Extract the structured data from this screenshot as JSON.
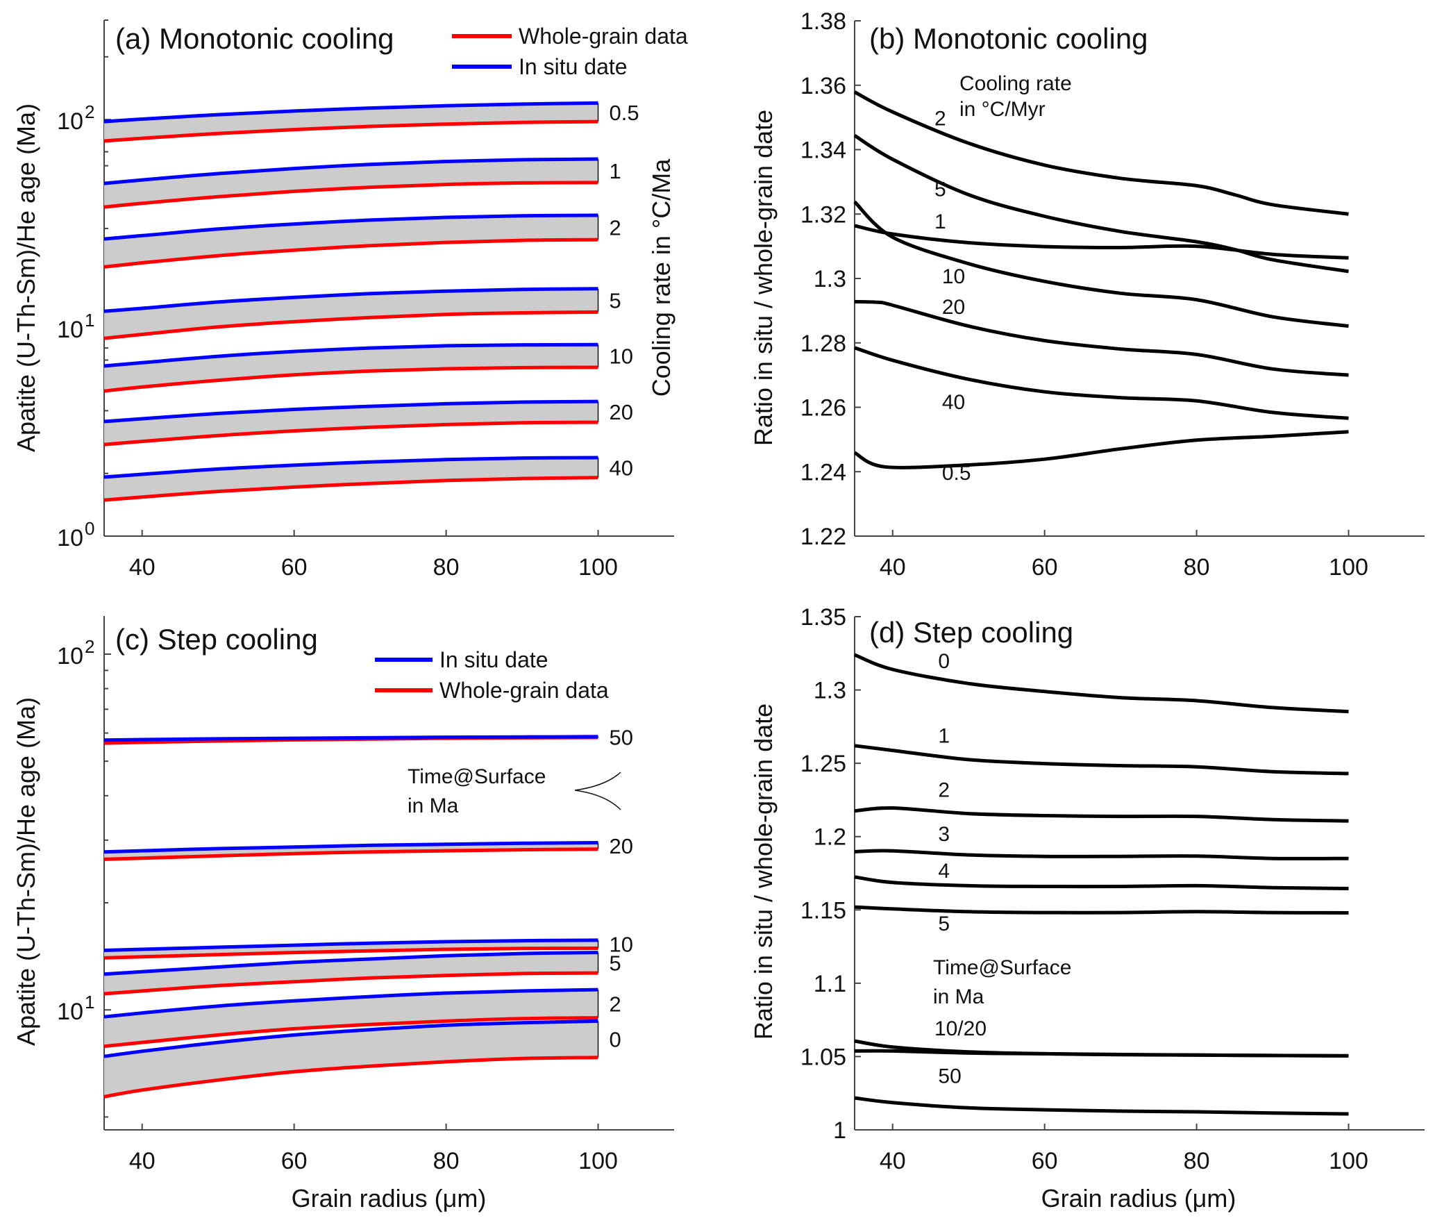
{
  "colors": {
    "in_situ": "#0000ff",
    "whole_grain": "#ff0000",
    "band_fill": "#cccccc",
    "ratio_line": "#000000"
  },
  "chart_data": [
    {
      "id": "a",
      "type": "area",
      "title": "(a) Monotonic cooling",
      "xlabel": "",
      "ylabel": "Apatite (U-Th-Sm)/He age (Ma)",
      "right_label": "Cooling rate in °C/Ma",
      "yscale": "log",
      "xlim": [
        35,
        110
      ],
      "ylim": [
        1,
        300
      ],
      "xticks": [
        40,
        60,
        80,
        100
      ],
      "xtick_labels": [
        "40",
        "60",
        "80",
        "100"
      ],
      "yticks": [
        1,
        10,
        100
      ],
      "ytick_labels": [
        {
          "base": "10",
          "exp": "0"
        },
        {
          "base": "10",
          "exp": "1"
        },
        {
          "base": "10",
          "exp": "2"
        }
      ],
      "legend": {
        "placement": "top-right",
        "entries": [
          {
            "label": "Whole-grain data",
            "series": "whole_grain"
          },
          {
            "label": "In situ date",
            "series": "in_situ"
          }
        ]
      },
      "x": [
        35,
        40,
        50,
        60,
        70,
        80,
        90,
        100
      ],
      "bands": [
        {
          "label": "0.5",
          "in_situ": [
            97.7,
            100.5,
            105.5,
            109.8,
            113.5,
            116.4,
            118.6,
            120.0
          ],
          "whole_grain": [
            78.9,
            81.3,
            85.7,
            89.5,
            92.7,
            95.1,
            96.8,
            97.7
          ]
        },
        {
          "label": "1",
          "in_situ": [
            49.3,
            51.3,
            55.0,
            58.2,
            60.9,
            62.9,
            64.1,
            64.6
          ],
          "whole_grain": [
            38.0,
            39.6,
            42.6,
            45.2,
            47.3,
            48.8,
            49.6,
            49.8
          ]
        },
        {
          "label": "2",
          "in_situ": [
            26.7,
            27.7,
            29.8,
            31.5,
            32.9,
            33.9,
            34.5,
            34.7
          ],
          "whole_grain": [
            19.6,
            20.5,
            22.2,
            23.6,
            24.8,
            25.7,
            26.3,
            26.5
          ]
        },
        {
          "label": "5",
          "in_situ": [
            12.0,
            12.4,
            13.3,
            14.0,
            14.6,
            15.0,
            15.3,
            15.4
          ],
          "whole_grain": [
            8.9,
            9.3,
            10.1,
            10.7,
            11.2,
            11.6,
            11.8,
            11.9
          ]
        },
        {
          "label": "10",
          "in_situ": [
            6.56,
            6.8,
            7.3,
            7.7,
            8.0,
            8.2,
            8.28,
            8.3
          ],
          "whole_grain": [
            4.97,
            5.2,
            5.6,
            5.95,
            6.2,
            6.36,
            6.44,
            6.46
          ]
        },
        {
          "label": "20",
          "in_situ": [
            3.55,
            3.66,
            3.88,
            4.06,
            4.2,
            4.32,
            4.4,
            4.43
          ],
          "whole_grain": [
            2.75,
            2.85,
            3.04,
            3.2,
            3.33,
            3.43,
            3.5,
            3.52
          ]
        },
        {
          "label": "40",
          "in_situ": [
            1.92,
            1.98,
            2.1,
            2.19,
            2.27,
            2.33,
            2.37,
            2.38
          ],
          "whole_grain": [
            1.49,
            1.54,
            1.64,
            1.72,
            1.79,
            1.85,
            1.89,
            1.91
          ]
        }
      ]
    },
    {
      "id": "b",
      "type": "line",
      "title": "(b) Monotonic cooling",
      "xlabel": "",
      "ylabel": "Ratio in situ / whole-grain date",
      "annotation": [
        "Cooling rate",
        "in °C/Myr"
      ],
      "xlim": [
        35,
        110
      ],
      "ylim": [
        1.22,
        1.38
      ],
      "xticks": [
        40,
        60,
        80,
        100
      ],
      "xtick_labels": [
        "40",
        "60",
        "80",
        "100"
      ],
      "yticks": [
        1.22,
        1.24,
        1.26,
        1.28,
        1.3,
        1.32,
        1.34,
        1.36,
        1.38
      ],
      "ytick_labels": [
        "1.22",
        "1.24",
        "1.26",
        "1.28",
        "1.3",
        "1.32",
        "1.34",
        "1.36",
        "1.38"
      ],
      "series": [
        {
          "name": "2",
          "label_at": [
            45.5,
            1.3475
          ],
          "x": [
            35,
            40,
            50,
            60,
            70,
            80,
            85,
            90,
            100
          ],
          "y": [
            1.3579,
            1.3517,
            1.342,
            1.3352,
            1.3311,
            1.3288,
            1.326,
            1.3229,
            1.32
          ]
        },
        {
          "name": "5",
          "label_at": [
            45.5,
            1.3255
          ],
          "x": [
            35,
            40,
            50,
            60,
            70,
            80,
            85,
            90,
            100
          ],
          "y": [
            1.3444,
            1.337,
            1.326,
            1.3193,
            1.3146,
            1.3114,
            1.309,
            1.3058,
            1.3022
          ]
        },
        {
          "name": "1",
          "label_at": [
            45.5,
            1.3155
          ],
          "x": [
            35,
            40,
            50,
            60,
            70,
            80,
            90,
            100
          ],
          "y": [
            1.3164,
            1.3138,
            1.3111,
            1.3099,
            1.3096,
            1.31,
            1.3075,
            1.3064
          ]
        },
        {
          "name": "10",
          "label_at": [
            46.5,
            1.2985
          ],
          "x": [
            35,
            40,
            50,
            60,
            70,
            80,
            90,
            100
          ],
          "y": [
            1.3238,
            1.3128,
            1.3046,
            1.2991,
            1.2954,
            1.2934,
            1.2881,
            1.2852
          ]
        },
        {
          "name": "20",
          "label_at": [
            46.5,
            1.289
          ],
          "x": [
            35,
            38,
            40,
            50,
            60,
            70,
            80,
            90,
            100
          ],
          "y": [
            1.2928,
            1.2926,
            1.2917,
            1.2852,
            1.2807,
            1.2781,
            1.2764,
            1.2719,
            1.27
          ]
        },
        {
          "name": "40",
          "label_at": [
            46.5,
            1.2595
          ],
          "x": [
            35,
            40,
            50,
            60,
            70,
            80,
            90,
            100
          ],
          "y": [
            1.2785,
            1.2746,
            1.2687,
            1.2648,
            1.263,
            1.262,
            1.2584,
            1.2566
          ]
        },
        {
          "name": "0.5",
          "label_at": [
            46.5,
            1.2375
          ],
          "x": [
            35,
            39,
            50,
            60,
            70,
            80,
            90,
            100
          ],
          "y": [
            1.2459,
            1.2415,
            1.2421,
            1.2439,
            1.2471,
            1.2498,
            1.251,
            1.2524
          ]
        }
      ]
    },
    {
      "id": "c",
      "type": "area",
      "title": "(c) Step cooling",
      "xlabel": "Grain radius (μm)",
      "ylabel": "Apatite (U-Th-Sm)/He age (Ma)",
      "annotation": [
        "Time@Surface",
        "in Ma"
      ],
      "yscale": "log",
      "xlim": [
        35,
        110
      ],
      "ylim": [
        4.6,
        128
      ],
      "xticks": [
        40,
        60,
        80,
        100
      ],
      "xtick_labels": [
        "40",
        "60",
        "80",
        "100"
      ],
      "yticks": [
        10,
        100
      ],
      "ytick_labels": [
        {
          "base": "10",
          "exp": "1"
        },
        {
          "base": "10",
          "exp": "2"
        }
      ],
      "legend": {
        "placement": "top-right",
        "entries": [
          {
            "label": "In situ date",
            "series": "in_situ"
          },
          {
            "label": "Whole-grain data",
            "series": "whole_grain"
          }
        ]
      },
      "x": [
        35,
        40,
        50,
        60,
        70,
        80,
        90,
        100
      ],
      "bands": [
        {
          "label": "50",
          "in_situ": [
            57.3,
            57.5,
            57.8,
            58.0,
            58.2,
            58.4,
            58.5,
            58.6
          ],
          "whole_grain": [
            56.2,
            56.5,
            57.0,
            57.4,
            57.7,
            58.0,
            58.2,
            58.3
          ]
        },
        {
          "label": "20",
          "in_situ": [
            27.8,
            28.0,
            28.4,
            28.7,
            29.0,
            29.2,
            29.4,
            29.5
          ],
          "whole_grain": [
            26.5,
            26.7,
            27.1,
            27.5,
            27.8,
            28.0,
            28.2,
            28.3
          ]
        },
        {
          "label": "10",
          "in_situ": [
            14.7,
            14.8,
            15.0,
            15.2,
            15.4,
            15.55,
            15.65,
            15.7
          ],
          "whole_grain": [
            14.0,
            14.1,
            14.3,
            14.5,
            14.65,
            14.8,
            14.88,
            14.9
          ]
        },
        {
          "label": "5",
          "in_situ": [
            12.6,
            12.8,
            13.2,
            13.6,
            13.9,
            14.2,
            14.4,
            14.5
          ],
          "whole_grain": [
            11.1,
            11.3,
            11.7,
            12.0,
            12.3,
            12.5,
            12.65,
            12.7
          ]
        },
        {
          "label": "2",
          "in_situ": [
            9.56,
            9.8,
            10.25,
            10.6,
            10.9,
            11.15,
            11.3,
            11.4
          ],
          "whole_grain": [
            7.9,
            8.1,
            8.5,
            8.85,
            9.1,
            9.3,
            9.45,
            9.5
          ]
        },
        {
          "label": "0",
          "in_situ": [
            7.4,
            7.65,
            8.1,
            8.5,
            8.8,
            9.05,
            9.2,
            9.3
          ],
          "whole_grain": [
            5.7,
            5.95,
            6.35,
            6.7,
            6.95,
            7.15,
            7.3,
            7.35
          ]
        }
      ]
    },
    {
      "id": "d",
      "type": "line",
      "title": "(d) Step cooling",
      "xlabel": "Grain radius (μm)",
      "ylabel": "Ratio in situ / whole-grain date",
      "annotation": [
        "Time@Surface",
        "in  Ma"
      ],
      "xlim": [
        35,
        110
      ],
      "ylim": [
        1.0,
        1.35
      ],
      "xticks": [
        40,
        60,
        80,
        100
      ],
      "xtick_labels": [
        "40",
        "60",
        "80",
        "100"
      ],
      "yticks": [
        1.0,
        1.05,
        1.1,
        1.15,
        1.2,
        1.25,
        1.3,
        1.35
      ],
      "ytick_labels": [
        "1",
        "1.05",
        "1.1",
        "1.15",
        "1.2",
        "1.25",
        "1.3",
        "1.35"
      ],
      "series": [
        {
          "name": "0",
          "label_at": [
            46,
            1.315
          ],
          "x": [
            35,
            40,
            50,
            60,
            70,
            80,
            90,
            100
          ],
          "y": [
            1.324,
            1.314,
            1.3044,
            1.299,
            1.2948,
            1.2927,
            1.288,
            1.2853
          ]
        },
        {
          "name": "1",
          "label_at": [
            46,
            1.264
          ],
          "x": [
            35,
            40,
            50,
            60,
            70,
            80,
            90,
            100
          ],
          "y": [
            1.262,
            1.2588,
            1.2525,
            1.2498,
            1.2484,
            1.2476,
            1.2443,
            1.243
          ]
        },
        {
          "name": "2",
          "label_at": [
            46,
            1.227
          ],
          "x": [
            35,
            40,
            50,
            60,
            70,
            80,
            90,
            100
          ],
          "y": [
            1.2175,
            1.2195,
            1.2157,
            1.2143,
            1.2138,
            1.2138,
            1.2116,
            1.2107
          ]
        },
        {
          "name": "3",
          "label_at": [
            46,
            1.197
          ],
          "x": [
            35,
            40,
            50,
            60,
            70,
            80,
            90,
            100
          ],
          "y": [
            1.1897,
            1.1903,
            1.1875,
            1.1865,
            1.1865,
            1.1867,
            1.1851,
            1.1851
          ]
        },
        {
          "name": "4",
          "label_at": [
            46,
            1.172
          ],
          "x": [
            35,
            40,
            50,
            60,
            70,
            80,
            90,
            100
          ],
          "y": [
            1.1725,
            1.1687,
            1.1665,
            1.166,
            1.166,
            1.1665,
            1.1652,
            1.1646
          ]
        },
        {
          "name": "5",
          "label_at": [
            46,
            1.136
          ],
          "x": [
            35,
            40,
            50,
            60,
            70,
            80,
            90,
            100
          ],
          "y": [
            1.152,
            1.1507,
            1.1488,
            1.1482,
            1.1482,
            1.1488,
            1.1482,
            1.148
          ]
        },
        {
          "name": "10",
          "label_at": null,
          "x": [
            35,
            40,
            50,
            60,
            70,
            80,
            100
          ],
          "y": [
            1.0606,
            1.0565,
            1.0532,
            1.0519,
            1.0513,
            1.051,
            1.0505
          ]
        },
        {
          "name": "20",
          "label_at": null,
          "x": [
            35,
            40,
            50,
            60,
            80,
            100
          ],
          "y": [
            1.0538,
            1.0538,
            1.0524,
            1.0519,
            1.051,
            1.0505
          ]
        },
        {
          "name": "50",
          "label_at": [
            46,
            1.032
          ],
          "x": [
            35,
            40,
            50,
            60,
            70,
            80,
            90,
            100
          ],
          "y": [
            1.0218,
            1.0186,
            1.015,
            1.0137,
            1.0128,
            1.0123,
            1.0115,
            1.0109
          ]
        }
      ],
      "combined_label": {
        "text": "10/20",
        "at": [
          45.5,
          1.0645
        ]
      }
    }
  ]
}
